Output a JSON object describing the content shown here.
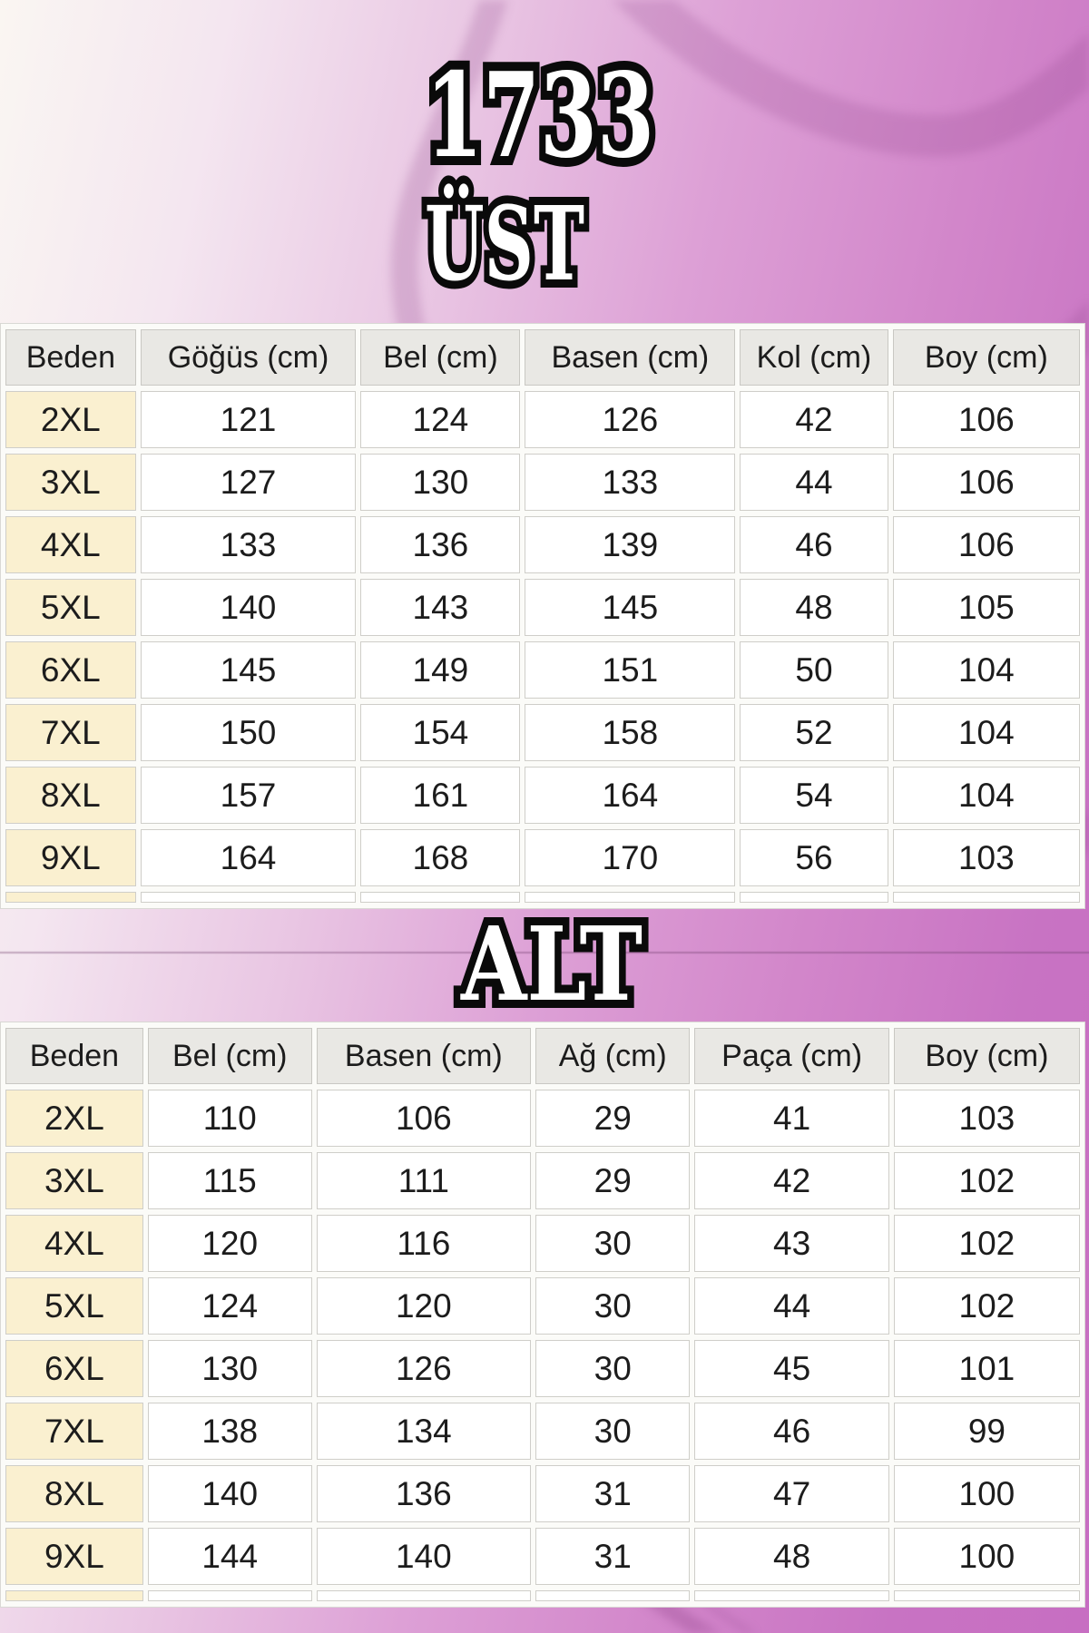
{
  "page": {
    "product_code": "1733",
    "section_top_label": "ÜST",
    "section_bottom_label": "ALT"
  },
  "colors": {
    "background_left": "#faf6f2",
    "background_right": "#c76ec2",
    "hanger_silhouette": "#8d4388",
    "header_cell_bg": "#e9e8e4",
    "size_cell_bg": "#faf0d0",
    "data_cell_bg": "#ffffff",
    "cell_border": "#cfcec9",
    "table_gap_bg": "#fbfbf8",
    "text": "#1c1c1c",
    "title_fill": "#ffffff",
    "title_outline": "#0a0a0a"
  },
  "ust_table": {
    "columns": [
      "Beden",
      "Göğüs (cm)",
      "Bel (cm)",
      "Basen (cm)",
      "Kol (cm)",
      "Boy (cm)"
    ],
    "rows": [
      {
        "size": "2XL",
        "values": [
          121,
          124,
          126,
          42,
          106
        ]
      },
      {
        "size": "3XL",
        "values": [
          127,
          130,
          133,
          44,
          106
        ]
      },
      {
        "size": "4XL",
        "values": [
          133,
          136,
          139,
          46,
          106
        ]
      },
      {
        "size": "5XL",
        "values": [
          140,
          143,
          145,
          48,
          105
        ]
      },
      {
        "size": "6XL",
        "values": [
          145,
          149,
          151,
          50,
          104
        ]
      },
      {
        "size": "7XL",
        "values": [
          150,
          154,
          158,
          52,
          104
        ]
      },
      {
        "size": "8XL",
        "values": [
          157,
          161,
          164,
          54,
          104
        ]
      },
      {
        "size": "9XL",
        "values": [
          164,
          168,
          170,
          56,
          103
        ]
      }
    ]
  },
  "alt_table": {
    "columns": [
      "Beden",
      "Bel (cm)",
      "Basen (cm)",
      "Ağ (cm)",
      "Paça (cm)",
      "Boy (cm)"
    ],
    "rows": [
      {
        "size": "2XL",
        "values": [
          110,
          106,
          29,
          41,
          103
        ]
      },
      {
        "size": "3XL",
        "values": [
          115,
          111,
          29,
          42,
          102
        ]
      },
      {
        "size": "4XL",
        "values": [
          120,
          116,
          30,
          43,
          102
        ]
      },
      {
        "size": "5XL",
        "values": [
          124,
          120,
          30,
          44,
          102
        ]
      },
      {
        "size": "6XL",
        "values": [
          130,
          126,
          30,
          45,
          101
        ]
      },
      {
        "size": "7XL",
        "values": [
          138,
          134,
          30,
          46,
          99
        ]
      },
      {
        "size": "8XL",
        "values": [
          140,
          136,
          31,
          47,
          100
        ]
      },
      {
        "size": "9XL",
        "values": [
          144,
          140,
          31,
          48,
          100
        ]
      }
    ]
  }
}
